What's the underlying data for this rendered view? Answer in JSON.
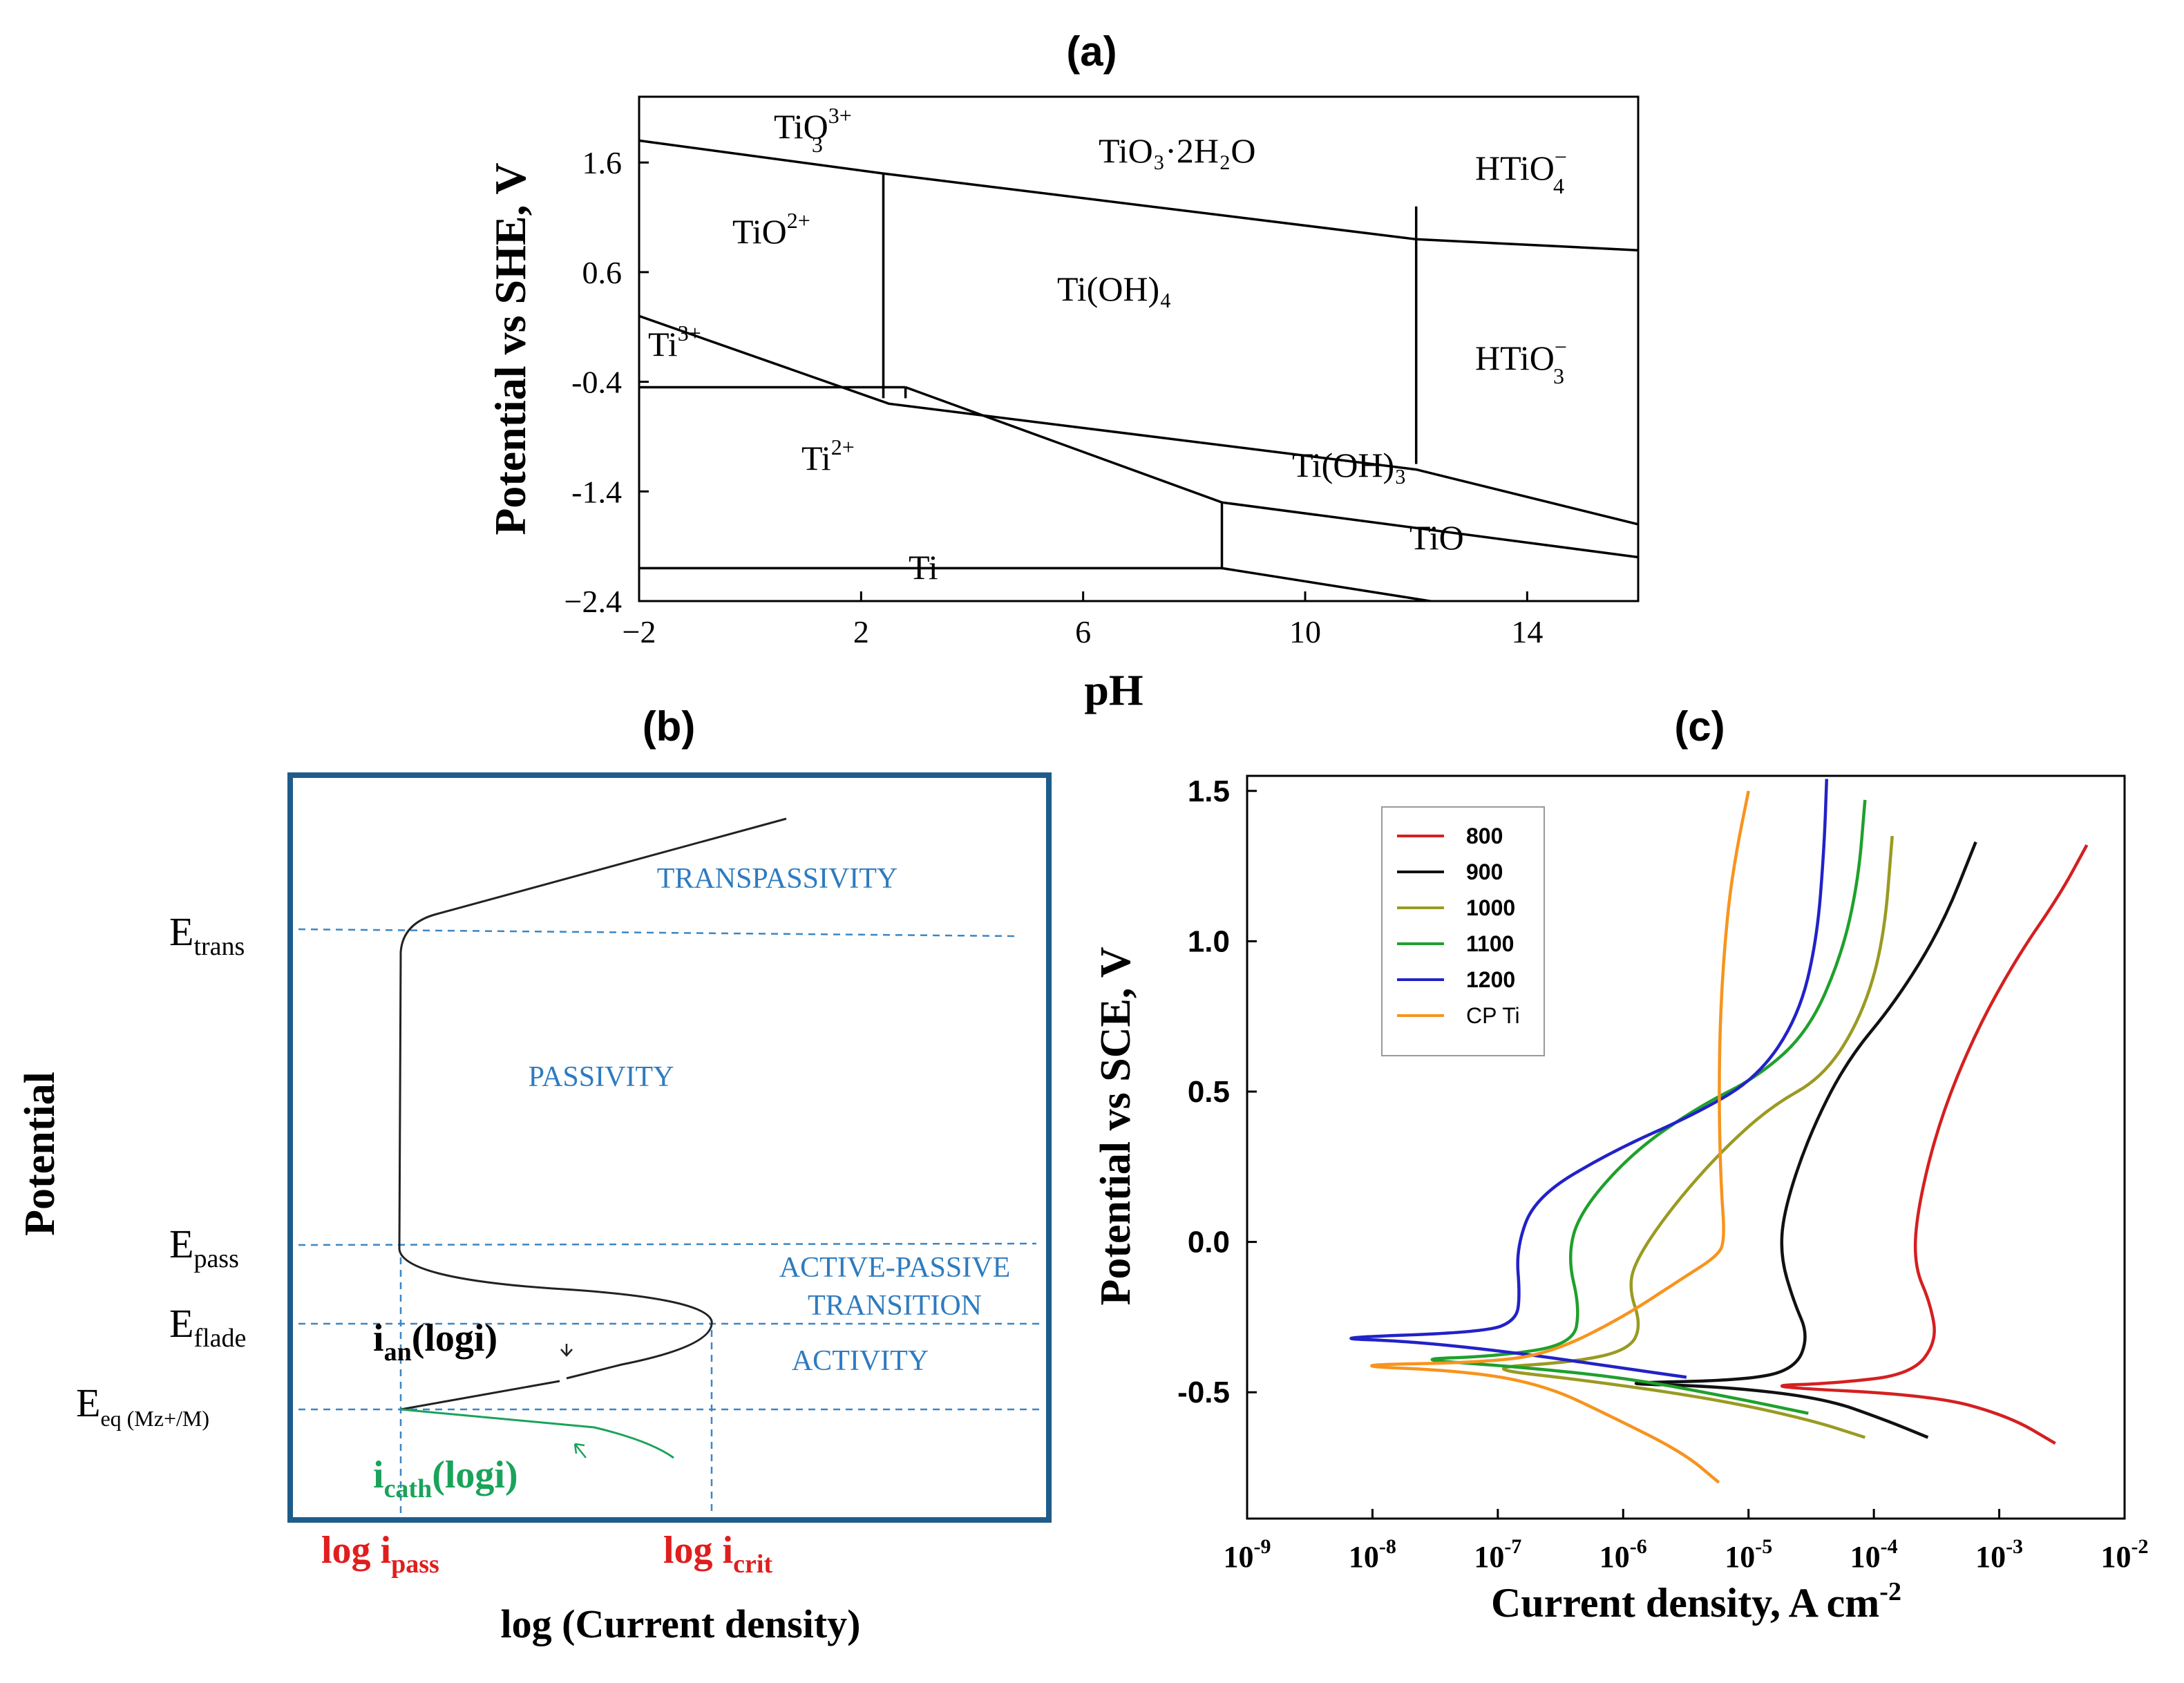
{
  "colors": {
    "axis": "#000000",
    "box_b": "#1f5c8b",
    "guide_b": "#3b86c4",
    "label_b": "#2e7bbf",
    "red": "#e01e1e",
    "green": "#1aa35a",
    "s800": "#d42020",
    "s900": "#111111",
    "s1000": "#9a9a22",
    "s1100": "#1fa02c",
    "s1200": "#2222c8",
    "scpti": "#f7941d"
  },
  "chart_data": [
    {
      "panel": "(a)",
      "type": "line",
      "title": "(a)",
      "xlabel": "pH",
      "ylabel": "Potential vs SHE, V",
      "xlim": [
        -2,
        16
      ],
      "ylim": [
        -2.4,
        2.2
      ],
      "xticks": [
        "-2",
        "2",
        "6",
        "10",
        "14"
      ],
      "yticks": [
        "1.6",
        "0.6",
        "-0.4",
        "-1.4",
        "-2.4"
      ],
      "boundaries": [
        {
          "name": "upper-oxide",
          "x": [
            -2,
            2.4,
            12,
            16
          ],
          "y": [
            1.8,
            1.5,
            0.9,
            0.8
          ]
        },
        {
          "name": "ti3-upper",
          "x": [
            -2,
            2.5,
            12,
            16
          ],
          "y": [
            0.2,
            -0.6,
            -1.2,
            -1.7
          ]
        },
        {
          "name": "ti3-lower",
          "x": [
            -2,
            2.8
          ],
          "y": [
            -0.45,
            -0.45
          ]
        },
        {
          "name": "ti2-upper",
          "x": [
            2.8,
            8.5,
            16
          ],
          "y": [
            -0.45,
            -1.5,
            -2.0
          ]
        },
        {
          "name": "ti-upper",
          "x": [
            -2,
            8.5
          ],
          "y": [
            -2.1,
            -2.1
          ]
        },
        {
          "name": "tio-lower",
          "x": [
            8.5,
            16
          ],
          "y": [
            -2.1,
            -2.7
          ]
        },
        {
          "name": "v-2.4",
          "x": [
            2.4,
            2.4
          ],
          "y": [
            1.5,
            -0.55
          ]
        },
        {
          "name": "v-2.8",
          "x": [
            2.8,
            2.8
          ],
          "y": [
            -0.55,
            -0.45
          ]
        },
        {
          "name": "v-8.5",
          "x": [
            8.5,
            8.5
          ],
          "y": [
            -1.5,
            -2.1
          ]
        },
        {
          "name": "v-12",
          "x": [
            12,
            12
          ],
          "y": [
            1.2,
            -1.15
          ]
        }
      ],
      "regions": [
        {
          "id": "tio3",
          "base": "TiO",
          "sub": "3",
          "sup": "3+"
        },
        {
          "id": "tio3h2o",
          "label": "TiO₃·2H₂O"
        },
        {
          "id": "htio4",
          "base": "HTiO",
          "sub": "4",
          "sup": "−"
        },
        {
          "id": "tio2plus",
          "base": "TiO",
          "sup": "2+"
        },
        {
          "id": "tioh4",
          "label": "Ti(OH)₄"
        },
        {
          "id": "ti3plus",
          "base": "Ti",
          "sup": "3+"
        },
        {
          "id": "htio3",
          "base": "HTiO",
          "sub": "3",
          "sup": "−"
        },
        {
          "id": "ti2plus",
          "base": "Ti",
          "sup": "2+"
        },
        {
          "id": "tioh3",
          "label": "Ti(OH)₃"
        },
        {
          "id": "tio",
          "label": "TiO"
        },
        {
          "id": "ti",
          "label": "Ti"
        }
      ]
    },
    {
      "panel": "(b)",
      "type": "line",
      "title": "(b)",
      "xlabel": "log (Current density)",
      "ylabel": "Potential",
      "levels": [
        {
          "base": "E",
          "sub": "trans"
        },
        {
          "base": "E",
          "sub": "pass"
        },
        {
          "base": "E",
          "sub": "flade"
        },
        {
          "base": "E",
          "sub": "eq (Mz+/M)"
        }
      ],
      "regions": [
        "TRANSPASSIVITY",
        "PASSIVITY",
        "ACTIVE-PASSIVE",
        "TRANSITION",
        "ACTIVITY"
      ],
      "currents": {
        "ian": {
          "base": "i",
          "sub": "an",
          "tail": "(logi)"
        },
        "icath": {
          "base": "i",
          "sub": "cath",
          "tail": "(logi)"
        },
        "ipass": {
          "base": "log i",
          "sub": "pass"
        },
        "icrit": {
          "base": "log i",
          "sub": "crit"
        }
      }
    },
    {
      "panel": "(c)",
      "type": "line",
      "title": "(c)",
      "xlabel": "Current density, A cm",
      "xlabel_sup": "-2",
      "ylabel": "Potential vs SCE, V",
      "xscale": "log",
      "xlim": [
        1e-09,
        0.01
      ],
      "ylim": [
        -0.92,
        1.55
      ],
      "xticks": [
        -9,
        -8,
        -7,
        -6,
        -5,
        -4,
        -3,
        -2
      ],
      "yticks": [
        "1.5",
        "1.0",
        "0.5",
        "0.0",
        "-0.5"
      ],
      "legend": "top-left",
      "series": [
        {
          "name": "800",
          "color_key": "s800",
          "points": [
            [
              0.0028,
              -0.67
            ],
            [
              0.0012,
              -0.58
            ],
            [
              0.0003,
              -0.51
            ],
            [
              1.1e-05,
              -0.48
            ],
            [
              5e-05,
              -0.47
            ],
            [
              0.0002,
              -0.44
            ],
            [
              0.00032,
              -0.33
            ],
            [
              0.00028,
              -0.2
            ],
            [
              0.00021,
              -0.08
            ],
            [
              0.00022,
              0.1
            ],
            [
              0.00033,
              0.4
            ],
            [
              0.00065,
              0.7
            ],
            [
              0.0014,
              0.95
            ],
            [
              0.003,
              1.15
            ],
            [
              0.005,
              1.32
            ]
          ]
        },
        {
          "name": "900",
          "color_key": "s900",
          "points": [
            [
              0.00027,
              -0.65
            ],
            [
              0.00012,
              -0.59
            ],
            [
              4e-05,
              -0.52
            ],
            [
              6e-06,
              -0.48
            ],
            [
              7e-07,
              -0.47
            ],
            [
              1e-05,
              -0.46
            ],
            [
              2.4e-05,
              -0.42
            ],
            [
              3e-05,
              -0.31
            ],
            [
              2.3e-05,
              -0.2
            ],
            [
              1.8e-05,
              -0.05
            ],
            [
              1.9e-05,
              0.1
            ],
            [
              3e-05,
              0.35
            ],
            [
              6e-05,
              0.6
            ],
            [
              0.00015,
              0.8
            ],
            [
              0.00035,
              1.05
            ],
            [
              0.00065,
              1.33
            ]
          ]
        },
        {
          "name": "1000",
          "color_key": "s1000",
          "points": [
            [
              8.5e-05,
              -0.65
            ],
            [
              3e-05,
              -0.59
            ],
            [
              5e-06,
              -0.52
            ],
            [
              5e-07,
              -0.46
            ],
            [
              7e-08,
              -0.42
            ],
            [
              4e-07,
              -0.4
            ],
            [
              1.1e-06,
              -0.36
            ],
            [
              1.4e-06,
              -0.28
            ],
            [
              1.1e-06,
              -0.15
            ],
            [
              1.3e-06,
              -0.05
            ],
            [
              2.5e-06,
              0.12
            ],
            [
              6e-06,
              0.3
            ],
            [
              1.5e-05,
              0.45
            ],
            [
              4e-05,
              0.55
            ],
            [
              8e-05,
              0.75
            ],
            [
              0.00012,
              1.0
            ],
            [
              0.00014,
              1.35
            ]
          ]
        },
        {
          "name": "1100",
          "color_key": "s1100",
          "points": [
            [
              3e-05,
              -0.57
            ],
            [
              8e-06,
              -0.52
            ],
            [
              1e-06,
              -0.45
            ],
            [
              1e-07,
              -0.41
            ],
            [
              2e-08,
              -0.39
            ],
            [
              1e-07,
              -0.38
            ],
            [
              4e-07,
              -0.34
            ],
            [
              4.5e-07,
              -0.22
            ],
            [
              3.6e-07,
              -0.05
            ],
            [
              4.5e-07,
              0.1
            ],
            [
              1.2e-06,
              0.3
            ],
            [
              4e-06,
              0.45
            ],
            [
              1.2e-05,
              0.55
            ],
            [
              3e-05,
              0.7
            ],
            [
              5.5e-05,
              0.95
            ],
            [
              7.5e-05,
              1.2
            ],
            [
              8.5e-05,
              1.47
            ]
          ]
        },
        {
          "name": "1200",
          "color_key": "s1200",
          "points": [
            [
              3.2e-06,
              -0.45
            ],
            [
              1e-06,
              -0.42
            ],
            [
              1.5e-07,
              -0.37
            ],
            [
              2e-08,
              -0.33
            ],
            [
              4e-09,
              -0.32
            ],
            [
              8e-08,
              -0.3
            ],
            [
              1.4e-07,
              -0.26
            ],
            [
              1.5e-07,
              -0.18
            ],
            [
              1.4e-07,
              -0.02
            ],
            [
              2e-07,
              0.15
            ],
            [
              8e-07,
              0.3
            ],
            [
              4e-06,
              0.43
            ],
            [
              1.2e-05,
              0.55
            ],
            [
              2.5e-05,
              0.75
            ],
            [
              3.5e-05,
              1.0
            ],
            [
              4e-05,
              1.3
            ],
            [
              4.2e-05,
              1.54
            ]
          ]
        },
        {
          "name": "CP Ti",
          "color_key": "scpti",
          "points": [
            [
              5.8e-06,
              -0.8
            ],
            [
              3e-06,
              -0.7
            ],
            [
              8e-07,
              -0.58
            ],
            [
              2.5e-07,
              -0.48
            ],
            [
              6e-08,
              -0.43
            ],
            [
              5e-09,
              -0.41
            ],
            [
              1e-07,
              -0.4
            ],
            [
              3e-07,
              -0.36
            ],
            [
              1e-06,
              -0.25
            ],
            [
              3e-06,
              -0.12
            ],
            [
              5.5e-06,
              -0.05
            ],
            [
              6.5e-06,
              0.0
            ],
            [
              6e-06,
              0.2
            ],
            [
              5.8e-06,
              0.5
            ],
            [
              6e-06,
              0.8
            ],
            [
              6.8e-06,
              1.1
            ],
            [
              8e-06,
              1.3
            ],
            [
              1e-05,
              1.5
            ]
          ]
        }
      ]
    }
  ]
}
